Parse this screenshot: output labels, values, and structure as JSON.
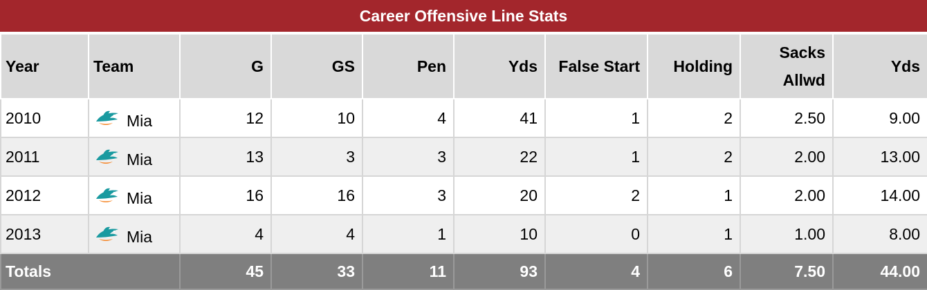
{
  "title": "Career Offensive Line Stats",
  "colors": {
    "title_bg": "#a3262c",
    "header_bg": "#d9d9d9",
    "row_alt_bg": "#efefef",
    "totals_bg": "#7f7f7f",
    "logo_aqua": "#1a9aa0",
    "logo_orange": "#f58220"
  },
  "headers": {
    "year": "Year",
    "team": "Team",
    "g": "G",
    "gs": "GS",
    "pen": "Pen",
    "yds": "Yds",
    "false_start": "False Start",
    "holding": "Holding",
    "sacks_line1": "Sacks",
    "sacks_line2": "Allwd",
    "sacks_yds": "Yds"
  },
  "team_logo_icon": "dolphins-logo-icon",
  "rows": [
    {
      "year": "2010",
      "team": "Mia",
      "g": "12",
      "gs": "10",
      "pen": "4",
      "yds": "41",
      "false_start": "1",
      "holding": "2",
      "sacks": "2.50",
      "sacks_yds": "9.00"
    },
    {
      "year": "2011",
      "team": "Mia",
      "g": "13",
      "gs": "3",
      "pen": "3",
      "yds": "22",
      "false_start": "1",
      "holding": "2",
      "sacks": "2.00",
      "sacks_yds": "13.00"
    },
    {
      "year": "2012",
      "team": "Mia",
      "g": "16",
      "gs": "16",
      "pen": "3",
      "yds": "20",
      "false_start": "2",
      "holding": "1",
      "sacks": "2.00",
      "sacks_yds": "14.00"
    },
    {
      "year": "2013",
      "team": "Mia",
      "g": "4",
      "gs": "4",
      "pen": "1",
      "yds": "10",
      "false_start": "0",
      "holding": "1",
      "sacks": "1.00",
      "sacks_yds": "8.00"
    }
  ],
  "totals": {
    "label": "Totals",
    "g": "45",
    "gs": "33",
    "pen": "11",
    "yds": "93",
    "false_start": "4",
    "holding": "6",
    "sacks": "7.50",
    "sacks_yds": "44.00"
  }
}
